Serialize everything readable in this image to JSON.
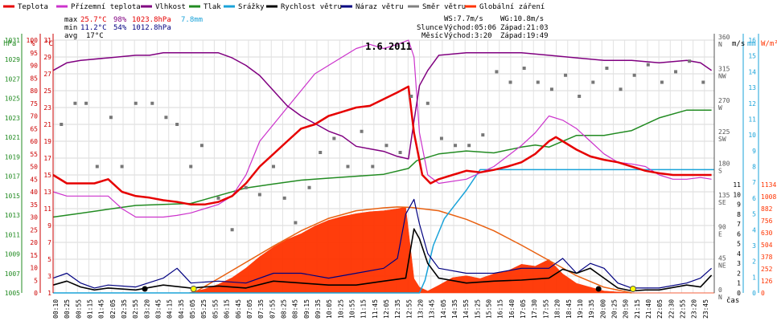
{
  "chart_data": {
    "type": "line",
    "title": "1.6.2011",
    "xlabel": "čas",
    "legend": [
      {
        "label": "Teplota",
        "color": "#e60000"
      },
      {
        "label": "Přízemní teplota",
        "color": "#cc33cc"
      },
      {
        "label": "Vlhkost",
        "color": "#800080"
      },
      {
        "label": "Tlak",
        "color": "#228b22"
      },
      {
        "label": "Srážky",
        "color": "#1aa3d9"
      },
      {
        "label": "Rychlost větru",
        "color": "#000000"
      },
      {
        "label": "Náraz větru",
        "color": "#000080"
      },
      {
        "label": "Směr větru",
        "color": "#808080"
      },
      {
        "label": "Globální záření",
        "color": "#ff3300"
      }
    ],
    "stats": {
      "max_label": "max",
      "max_t": "25.7°C",
      "max_h": "98%",
      "max_p": "1023.8hPa",
      "rain": "7.8mm",
      "min_label": "min",
      "min_t": "11.2°C",
      "min_h": "54%",
      "min_p": "1012.8hPa",
      "avg_label": "avg",
      "avg_t": "17°C"
    },
    "info": {
      "ws": "WS:7.7m/s",
      "wg": "WG:10.8m/s",
      "sun_label": "Slunce",
      "sun_rise": "Východ:05:06",
      "sun_set": "Západ:21:03",
      "moon_label": "Měsíc",
      "moon_rise": "Východ:3:20",
      "moon_set": "Západ:19:49"
    },
    "axes": {
      "hpa_unit": "hPa",
      "pct_unit": "%",
      "c_unit": "°C",
      "ms_unit": "m/s",
      "mm_unit": "mm",
      "wm_unit": "W/m²",
      "hpa_ticks": [
        "1005",
        "1007",
        "1009",
        "1011",
        "1013",
        "1015",
        "1017",
        "1019",
        "1021",
        "1023",
        "1025",
        "1027",
        "1029",
        "1031"
      ],
      "pct_ticks": [
        "0",
        "5",
        "10",
        "15",
        "20",
        "25",
        "30",
        "35",
        "40",
        "45",
        "50",
        "55",
        "60",
        "65",
        "70",
        "75",
        "80",
        "85",
        "90",
        "95",
        "100"
      ],
      "c_ticks": [
        "1",
        "3",
        "5",
        "7",
        "9",
        "11",
        "13",
        "15",
        "17",
        "19",
        "21",
        "23",
        "25",
        "27",
        "29",
        "31"
      ],
      "dir_ticks": [
        "0",
        "45",
        "90",
        "135",
        "180",
        "225",
        "270",
        "315",
        "360"
      ],
      "dir_names": [
        "N",
        "NE",
        "E",
        "SE",
        "S",
        "SW",
        "W",
        "NW",
        "N"
      ],
      "ms_ticks": [
        "0",
        "1",
        "2",
        "3",
        "4",
        "5",
        "6",
        "7",
        "8",
        "9",
        "10",
        "11"
      ],
      "mm_ticks": [
        "0",
        "1",
        "2",
        "3",
        "4",
        "5",
        "6",
        "7",
        "8",
        "9",
        "10",
        "11",
        "12",
        "13",
        "14",
        "15",
        "16"
      ],
      "wm_ticks": [
        "0",
        "126",
        "252",
        "378",
        "504",
        "630",
        "756",
        "882",
        "1008",
        "1134"
      ],
      "time_ticks": [
        "00:10",
        "00:25",
        "00:55",
        "01:15",
        "01:45",
        "02:05",
        "02:35",
        "02:55",
        "03:20",
        "03:45",
        "04:15",
        "04:35",
        "05:05",
        "05:25",
        "05:55",
        "06:15",
        "06:45",
        "07:05",
        "07:35",
        "07:55",
        "08:25",
        "08:45",
        "09:15",
        "09:35",
        "10:05",
        "10:25",
        "10:55",
        "11:15",
        "11:45",
        "12:05",
        "12:35",
        "12:55",
        "13:20",
        "13:45",
        "14:05",
        "14:35",
        "14:55",
        "15:25",
        "15:50",
        "16:15",
        "16:40",
        "17:05",
        "17:30",
        "17:55",
        "18:20",
        "18:45",
        "19:10",
        "19:35",
        "20:00",
        "20:25",
        "20:50",
        "21:15",
        "21:40",
        "22:05",
        "22:30",
        "22:55",
        "23:20",
        "23:45"
      ]
    },
    "x_range_hours": [
      0,
      24
    ],
    "series": [
      {
        "name": "Teplota",
        "unit": "°C",
        "t": [
          0,
          0.5,
          1,
          1.5,
          2,
          2.5,
          3,
          3.5,
          4,
          4.5,
          5,
          5.5,
          6,
          6.5,
          7,
          7.5,
          8,
          8.5,
          9,
          9.5,
          10,
          10.5,
          11,
          11.5,
          12,
          12.5,
          12.9,
          13.1,
          13.4,
          13.7,
          14,
          14.5,
          15,
          15.5,
          16,
          16.5,
          17,
          17.5,
          18,
          18.25,
          18.5,
          19,
          19.5,
          20,
          20.5,
          21,
          21.5,
          22,
          22.5,
          23,
          23.5,
          23.9
        ],
        "values": [
          15,
          14,
          14,
          14,
          14.5,
          13,
          12.5,
          12.3,
          12,
          11.8,
          11.5,
          11.5,
          11.8,
          12.5,
          14,
          16,
          17.5,
          19,
          20.5,
          21,
          22,
          22.5,
          23,
          23.2,
          24,
          24.8,
          25.5,
          20,
          15,
          14,
          14.5,
          15,
          15.5,
          15.3,
          15.6,
          16,
          16.5,
          17.5,
          19,
          19.5,
          19,
          18,
          17.2,
          16.8,
          16.5,
          16,
          15.5,
          15.2,
          15,
          15,
          15,
          15
        ]
      },
      {
        "name": "Přízemní teplota",
        "unit": "°C",
        "t": [
          0,
          0.5,
          1,
          2,
          2.5,
          3,
          3.5,
          4,
          4.5,
          5,
          5.5,
          6,
          6.5,
          7,
          7.5,
          8,
          8.5,
          9,
          9.5,
          10,
          10.5,
          11,
          11.5,
          12,
          12.5,
          12.9,
          13.1,
          13.3,
          13.6,
          14,
          15,
          16,
          17,
          17.5,
          18,
          18.5,
          19,
          19.5,
          20,
          20.5,
          21,
          21.5,
          22,
          22.5,
          23,
          23.5,
          23.9
        ],
        "values": [
          13,
          12.5,
          12.5,
          12.5,
          11,
          10,
          10,
          10,
          10.2,
          10.5,
          11,
          11.5,
          12.5,
          15,
          19,
          21,
          23,
          25,
          27,
          28,
          29,
          30,
          30.5,
          30,
          30.5,
          31,
          29,
          20,
          15,
          14,
          14.5,
          16,
          18.5,
          20,
          22,
          21.5,
          20.5,
          19,
          17.5,
          16.5,
          16.3,
          16,
          15,
          14.5,
          14.5,
          14.7,
          14.5
        ]
      },
      {
        "name": "Vlhkost",
        "unit": "%",
        "t": [
          0,
          0.5,
          1,
          2,
          3,
          3.5,
          4,
          5,
          6,
          6.5,
          7,
          7.5,
          8,
          8.5,
          9,
          9.5,
          10,
          10.5,
          11,
          11.5,
          12,
          12.5,
          12.9,
          13.1,
          13.3,
          13.6,
          14,
          15,
          16,
          17,
          18,
          19,
          20,
          21,
          22,
          23,
          23.5,
          23.9
        ],
        "values": [
          88,
          91,
          92,
          93,
          94,
          94,
          95,
          95,
          95,
          93,
          90,
          86,
          80,
          74,
          70,
          67,
          64,
          62,
          58,
          57,
          56,
          54,
          53,
          68,
          82,
          88,
          94,
          95,
          95,
          95,
          94,
          93,
          92,
          92,
          91,
          92,
          91,
          88
        ]
      },
      {
        "name": "Tlak",
        "unit": "hPa",
        "t": [
          0,
          1,
          2,
          3,
          4,
          5,
          6,
          7,
          8,
          9,
          10,
          11,
          12,
          12.9,
          13.2,
          14,
          15,
          16,
          17,
          17.5,
          18,
          19,
          20,
          21,
          22,
          23,
          23.9
        ],
        "values": [
          1012.8,
          1013.2,
          1013.6,
          1014,
          1014.1,
          1014.2,
          1015,
          1015.8,
          1016.2,
          1016.6,
          1016.8,
          1017,
          1017.2,
          1017.8,
          1018.6,
          1019.3,
          1019.6,
          1019.4,
          1020,
          1020.2,
          1020,
          1021.2,
          1021.2,
          1021.7,
          1023,
          1023.8,
          1023.8
        ]
      },
      {
        "name": "Srážky",
        "unit": "mm",
        "t": [
          0,
          13.3,
          13.5,
          13.8,
          14.2,
          14.6,
          15,
          15.5,
          16,
          24
        ],
        "values": [
          0,
          0,
          0.8,
          3,
          4.7,
          5.6,
          6.5,
          7.8,
          7.8,
          7.8
        ]
      },
      {
        "name": "Rychlost větru",
        "unit": "m/s",
        "t": [
          0,
          0.5,
          1,
          1.5,
          2,
          3,
          4,
          5,
          6,
          7,
          8,
          9,
          10,
          11,
          12,
          12.8,
          13.1,
          13.3,
          13.6,
          14,
          15,
          16,
          17,
          18,
          18.5,
          19,
          19.5,
          20,
          20.5,
          21,
          21.5,
          22,
          23,
          23.5,
          23.9
        ],
        "values": [
          0.8,
          1.2,
          0.6,
          0.3,
          0.5,
          0.3,
          0.8,
          0.5,
          0.7,
          0.5,
          1.2,
          1,
          0.8,
          0.8,
          1.2,
          1.5,
          6.5,
          5.5,
          3,
          1.5,
          1,
          1.2,
          1.3,
          1.5,
          2.4,
          2,
          2.5,
          1.5,
          0.5,
          0.2,
          0.3,
          0.3,
          0.8,
          0.6,
          1.8
        ]
      },
      {
        "name": "Náraz větru",
        "unit": "m/s",
        "t": [
          0,
          0.5,
          1,
          1.5,
          2,
          3,
          4,
          4.5,
          5,
          6,
          7,
          8,
          9,
          10,
          11,
          12,
          12.5,
          12.8,
          13.1,
          13.3,
          13.6,
          14,
          15,
          16,
          17,
          18,
          18.5,
          19,
          19.5,
          20,
          20.5,
          21,
          21.5,
          22,
          23,
          23.5,
          23.9
        ],
        "values": [
          1.5,
          2,
          1,
          0.5,
          0.8,
          0.6,
          1.5,
          2.5,
          1,
          1.2,
          1,
          2,
          2,
          1.5,
          2,
          2.5,
          3.5,
          8,
          9.5,
          7,
          4,
          2.5,
          2,
          2,
          2.5,
          2.5,
          3.5,
          2,
          3,
          2.5,
          1,
          0.5,
          0.5,
          0.5,
          1,
          1.5,
          2.5
        ]
      },
      {
        "name": "Globální záření",
        "unit": "W/m²",
        "t": [
          0,
          4.9,
          5.5,
          6,
          6.5,
          7,
          7.5,
          8,
          8.5,
          9,
          9.5,
          10,
          10.5,
          11,
          11.5,
          12,
          12.5,
          12.8,
          13.1,
          13.3,
          13.6,
          14,
          14.5,
          15,
          15.5,
          16,
          16.5,
          17,
          17.5,
          18,
          18.5,
          19,
          19.5,
          20,
          20.5,
          21,
          24
        ],
        "values": [
          0,
          0,
          40,
          90,
          160,
          260,
          380,
          480,
          560,
          620,
          700,
          760,
          800,
          830,
          850,
          860,
          880,
          900,
          150,
          60,
          20,
          80,
          160,
          180,
          150,
          200,
          230,
          300,
          280,
          350,
          200,
          100,
          60,
          20,
          10,
          0,
          0
        ]
      },
      {
        "name": "Globální záření (teor.)",
        "unit": "W/m²",
        "t": [
          5.1,
          6,
          7,
          8,
          9,
          10,
          11,
          12,
          12.5,
          13,
          14,
          15,
          16,
          17,
          18,
          19,
          20,
          21
        ],
        "values": [
          0,
          150,
          320,
          490,
          650,
          780,
          860,
          890,
          900,
          895,
          860,
          770,
          650,
          500,
          340,
          180,
          60,
          0
        ]
      },
      {
        "name": "Směr větru",
        "unit": "°",
        "t": [
          0.3,
          0.8,
          1.2,
          1.6,
          2.1,
          2.5,
          3.0,
          3.6,
          4.1,
          4.5,
          5.0,
          5.4,
          6.0,
          6.5,
          7.0,
          7.5,
          8.0,
          8.4,
          8.8,
          9.3,
          9.7,
          10.2,
          10.7,
          11.2,
          11.6,
          12.1,
          12.6,
          13.0,
          13.6,
          14.1,
          14.6,
          15.1,
          15.6,
          16.1,
          16.6,
          17.1,
          17.6,
          18.1,
          18.6,
          19.1,
          19.6,
          20.1,
          20.6,
          21.1,
          21.6,
          22.1,
          22.6,
          23.1,
          23.6
        ],
        "values": [
          240,
          270,
          270,
          180,
          250,
          180,
          270,
          270,
          250,
          240,
          180,
          210,
          135,
          90,
          150,
          140,
          180,
          135,
          100,
          150,
          200,
          220,
          180,
          230,
          180,
          210,
          200,
          280,
          270,
          220,
          210,
          210,
          225,
          315,
          300,
          320,
          300,
          290,
          310,
          280,
          300,
          320,
          290,
          310,
          325,
          300,
          315,
          330,
          300
        ]
      }
    ]
  }
}
